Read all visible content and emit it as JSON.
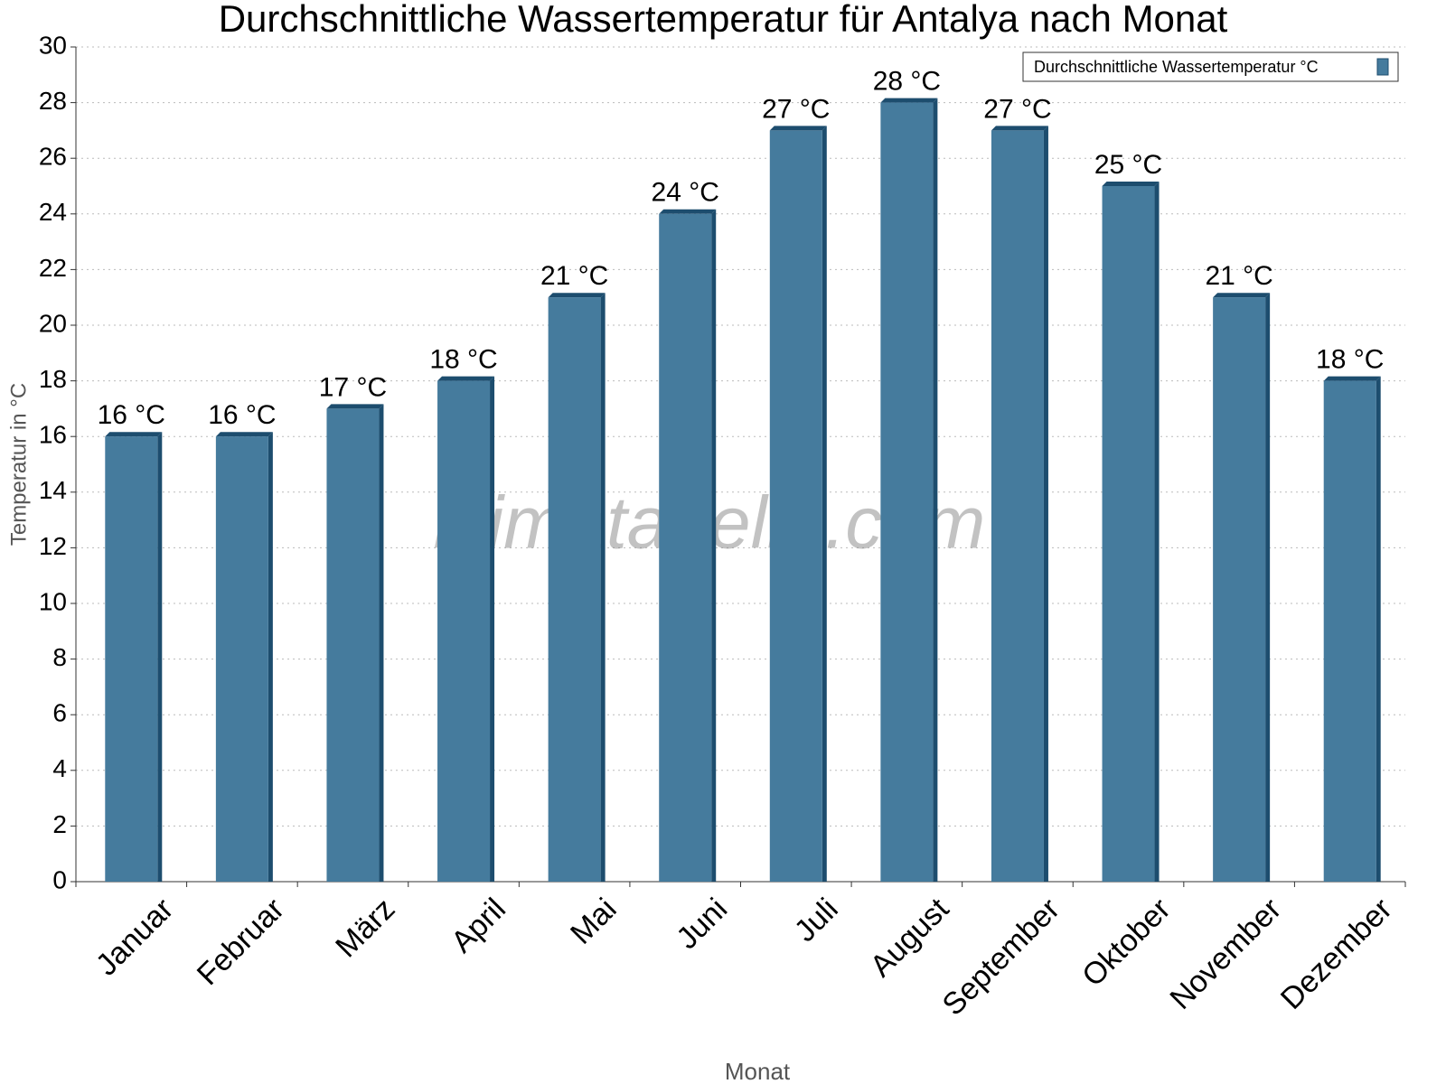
{
  "chart_data": {
    "type": "bar",
    "title": "Durchschnittliche Wassertemperatur für Antalya nach Monat",
    "x_label": "Monat",
    "y_label": "Temperatur in °C",
    "watermark": "klimatabelle.com",
    "categories": [
      "Januar",
      "Februar",
      "März",
      "April",
      "Mai",
      "Juni",
      "Juli",
      "August",
      "September",
      "Oktober",
      "November",
      "Dezember"
    ],
    "series": [
      {
        "name": "Durchschnittliche Wassertemperatur °C",
        "color": "#457b9d",
        "values": [
          16,
          16,
          17,
          18,
          21,
          24,
          27,
          28,
          27,
          25,
          21,
          18
        ],
        "value_labels": [
          "16 °C",
          "16 °C",
          "17 °C",
          "18 °C",
          "21 °C",
          "24 °C",
          "27 °C",
          "28 °C",
          "27 °C",
          "25 °C",
          "21 °C",
          "18 °C"
        ]
      }
    ],
    "ylim": [
      0,
      30
    ],
    "yticks": [
      0,
      2,
      4,
      6,
      8,
      10,
      12,
      14,
      16,
      18,
      20,
      22,
      24,
      26,
      28,
      30
    ],
    "grid": true,
    "legend": "top-right"
  }
}
